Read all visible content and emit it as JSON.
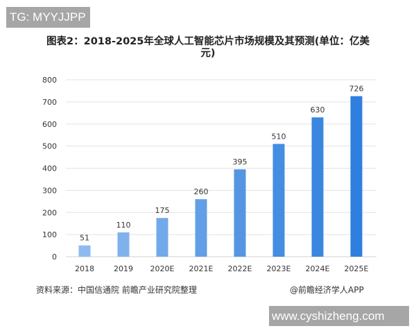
{
  "watermark_tg": "TG: MYYJJPP",
  "watermark_site": "www.cyshizheng.com",
  "footer": {
    "source": "资料来源：中国信通院 前瞻产业研究院整理",
    "brand": "@前瞻经济学人APP"
  },
  "chart_data": {
    "type": "bar",
    "title": "图表2：2018-2025年全球人工智能芯片市场规模及其预测(单位：亿美元)",
    "categories": [
      "2018",
      "2019",
      "2020E",
      "2021E",
      "2022E",
      "2023E",
      "2024E",
      "2025E"
    ],
    "values": [
      51,
      110,
      175,
      260,
      395,
      510,
      630,
      726
    ],
    "ylim": [
      0,
      800
    ],
    "yticks": [
      0,
      100,
      200,
      300,
      400,
      500,
      600,
      700,
      800
    ],
    "grid": true,
    "data_labels": true,
    "colors": [
      "#8dbbef",
      "#7fb2ec",
      "#72a9ea",
      "#629fe6",
      "#5496e2",
      "#448de0",
      "#3a87e0",
      "#2f7fe0"
    ]
  }
}
